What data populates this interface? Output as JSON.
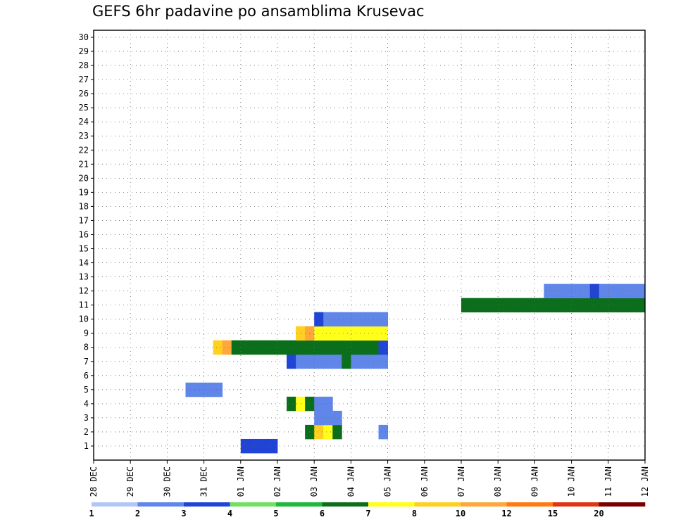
{
  "chart_data": {
    "type": "heatmap",
    "title": "GEFS 6hr padavine po ansamblima Krusevac",
    "xlabel": "",
    "ylabel": "",
    "x_ticks": [
      "28 DEC",
      "29 DEC",
      "30 DEC",
      "31 DEC",
      "01 JAN",
      "02 JAN",
      "03 JAN",
      "04 JAN",
      "05 JAN",
      "06 JAN",
      "07 JAN",
      "08 JAN",
      "09 JAN",
      "10 JAN",
      "11 JAN",
      "12 JAN"
    ],
    "y_ticks": [
      "1",
      "2",
      "3",
      "4",
      "5",
      "6",
      "7",
      "8",
      "9",
      "10",
      "11",
      "12",
      "13",
      "14",
      "15",
      "16",
      "17",
      "18",
      "19",
      "20",
      "21",
      "22",
      "23",
      "24",
      "25",
      "26",
      "27",
      "28",
      "29",
      "30"
    ],
    "x_range": [
      "28 DEC 00z",
      "12 JAN 00z"
    ],
    "y_range": [
      0,
      30
    ],
    "x_unit": "6-hour step",
    "grid": true,
    "colorbar": {
      "position": "bottom",
      "labels": [
        "1",
        "2",
        "3",
        "4",
        "5",
        "6",
        "7",
        "8",
        "10",
        "12",
        "15",
        "20"
      ],
      "colors": [
        "#b3c7f7",
        "#5f86e8",
        "#1f44d6",
        "#6fe060",
        "#1eb83a",
        "#0b6e1a",
        "#ffff1a",
        "#ffd020",
        "#ffa73a",
        "#ff7a10",
        "#e03412",
        "#7a0000"
      ]
    },
    "cells": [
      [
        16,
        1,
        2
      ],
      [
        17,
        1,
        2
      ],
      [
        18,
        1,
        2
      ],
      [
        19,
        1,
        2
      ],
      [
        23,
        2,
        5
      ],
      [
        24,
        2,
        7
      ],
      [
        25,
        2,
        6
      ],
      [
        26,
        2,
        5
      ],
      [
        31,
        2,
        1
      ],
      [
        24,
        3,
        1
      ],
      [
        25,
        3,
        1
      ],
      [
        26,
        3,
        1
      ],
      [
        21,
        4,
        5
      ],
      [
        22,
        4,
        6
      ],
      [
        23,
        4,
        5
      ],
      [
        24,
        4,
        1
      ],
      [
        25,
        4,
        1
      ],
      [
        10,
        5,
        1
      ],
      [
        11,
        5,
        1
      ],
      [
        12,
        5,
        1
      ],
      [
        13,
        5,
        1
      ],
      [
        21,
        7,
        2
      ],
      [
        22,
        7,
        1
      ],
      [
        23,
        7,
        1
      ],
      [
        24,
        7,
        1
      ],
      [
        25,
        7,
        1
      ],
      [
        26,
        7,
        1
      ],
      [
        27,
        7,
        5
      ],
      [
        28,
        7,
        1
      ],
      [
        29,
        7,
        1
      ],
      [
        30,
        7,
        1
      ],
      [
        31,
        7,
        1
      ],
      [
        13,
        8,
        7
      ],
      [
        14,
        8,
        8
      ],
      [
        15,
        8,
        5
      ],
      [
        16,
        8,
        5
      ],
      [
        17,
        8,
        5
      ],
      [
        18,
        8,
        5
      ],
      [
        19,
        8,
        5
      ],
      [
        20,
        8,
        5
      ],
      [
        21,
        8,
        5
      ],
      [
        22,
        8,
        5
      ],
      [
        23,
        8,
        5
      ],
      [
        24,
        8,
        5
      ],
      [
        25,
        8,
        5
      ],
      [
        26,
        8,
        5
      ],
      [
        27,
        8,
        5
      ],
      [
        28,
        8,
        5
      ],
      [
        29,
        8,
        5
      ],
      [
        30,
        8,
        5
      ],
      [
        31,
        8,
        2
      ],
      [
        22,
        9,
        7
      ],
      [
        23,
        9,
        8
      ],
      [
        24,
        9,
        6
      ],
      [
        25,
        9,
        6
      ],
      [
        26,
        9,
        6
      ],
      [
        27,
        9,
        6
      ],
      [
        28,
        9,
        6
      ],
      [
        29,
        9,
        6
      ],
      [
        30,
        9,
        6
      ],
      [
        31,
        9,
        6
      ],
      [
        24,
        10,
        2
      ],
      [
        25,
        10,
        1
      ],
      [
        26,
        10,
        1
      ],
      [
        27,
        10,
        1
      ],
      [
        28,
        10,
        1
      ],
      [
        29,
        10,
        1
      ],
      [
        30,
        10,
        1
      ],
      [
        31,
        10,
        1
      ],
      [
        40,
        11,
        5
      ],
      [
        41,
        11,
        5
      ],
      [
        42,
        11,
        5
      ],
      [
        43,
        11,
        5
      ],
      [
        44,
        11,
        5
      ],
      [
        45,
        11,
        5
      ],
      [
        46,
        11,
        5
      ],
      [
        47,
        11,
        5
      ],
      [
        48,
        11,
        5
      ],
      [
        49,
        11,
        5
      ],
      [
        50,
        11,
        5
      ],
      [
        51,
        11,
        5
      ],
      [
        52,
        11,
        5
      ],
      [
        53,
        11,
        5
      ],
      [
        54,
        11,
        5
      ],
      [
        55,
        11,
        5
      ],
      [
        56,
        11,
        5
      ],
      [
        57,
        11,
        5
      ],
      [
        58,
        11,
        5
      ],
      [
        59,
        11,
        5
      ],
      [
        49,
        12,
        1
      ],
      [
        50,
        12,
        1
      ],
      [
        51,
        12,
        1
      ],
      [
        52,
        12,
        1
      ],
      [
        53,
        12,
        1
      ],
      [
        54,
        12,
        2
      ],
      [
        55,
        12,
        1
      ],
      [
        56,
        12,
        1
      ],
      [
        57,
        12,
        1
      ],
      [
        58,
        12,
        1
      ],
      [
        59,
        12,
        1
      ]
    ]
  }
}
